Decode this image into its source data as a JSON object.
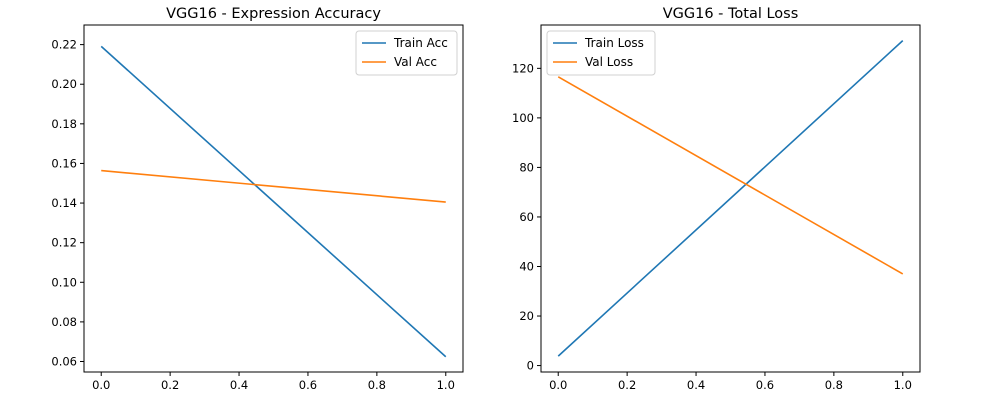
{
  "chart_data": [
    {
      "type": "line",
      "title": "VGG16 - Expression Accuracy",
      "xlabel": "",
      "ylabel": "",
      "x": [
        0.0,
        1.0
      ],
      "xlim": [
        -0.05,
        1.05
      ],
      "ylim": [
        0.0547,
        0.2299
      ],
      "xticks": [
        0.0,
        0.2,
        0.4,
        0.6,
        0.8,
        1.0
      ],
      "xtick_labels": [
        "0.0",
        "0.2",
        "0.4",
        "0.6",
        "0.8",
        "1.0"
      ],
      "yticks": [
        0.06,
        0.08,
        0.1,
        0.12,
        0.14,
        0.16,
        0.18,
        0.2,
        0.22
      ],
      "ytick_labels": [
        "0.06",
        "0.08",
        "0.10",
        "0.12",
        "0.14",
        "0.16",
        "0.18",
        "0.20",
        "0.22"
      ],
      "legend_position": "top-right",
      "grid": false,
      "series": [
        {
          "name": "Train Acc",
          "values": [
            0.2191,
            0.0624
          ],
          "color": "#1f77b4"
        },
        {
          "name": "Val Acc",
          "values": [
            0.1564,
            0.1405
          ],
          "color": "#ff7f0e"
        }
      ]
    },
    {
      "type": "line",
      "title": "VGG16 - Total Loss",
      "xlabel": "",
      "ylabel": "",
      "x": [
        0.0,
        1.0
      ],
      "xlim": [
        -0.05,
        1.05
      ],
      "ylim": [
        -2.6,
        137.5
      ],
      "xticks": [
        0.0,
        0.2,
        0.4,
        0.6,
        0.8,
        1.0
      ],
      "xtick_labels": [
        "0.0",
        "0.2",
        "0.4",
        "0.6",
        "0.8",
        "1.0"
      ],
      "yticks": [
        0,
        20,
        40,
        60,
        80,
        100,
        120
      ],
      "ytick_labels": [
        "0",
        "20",
        "40",
        "60",
        "80",
        "100",
        "120"
      ],
      "legend_position": "top-left",
      "grid": false,
      "series": [
        {
          "name": "Train Loss",
          "values": [
            3.8,
            131.2
          ],
          "color": "#1f77b4"
        },
        {
          "name": "Val Loss",
          "values": [
            116.6,
            37.0
          ],
          "color": "#ff7f0e"
        }
      ]
    }
  ]
}
